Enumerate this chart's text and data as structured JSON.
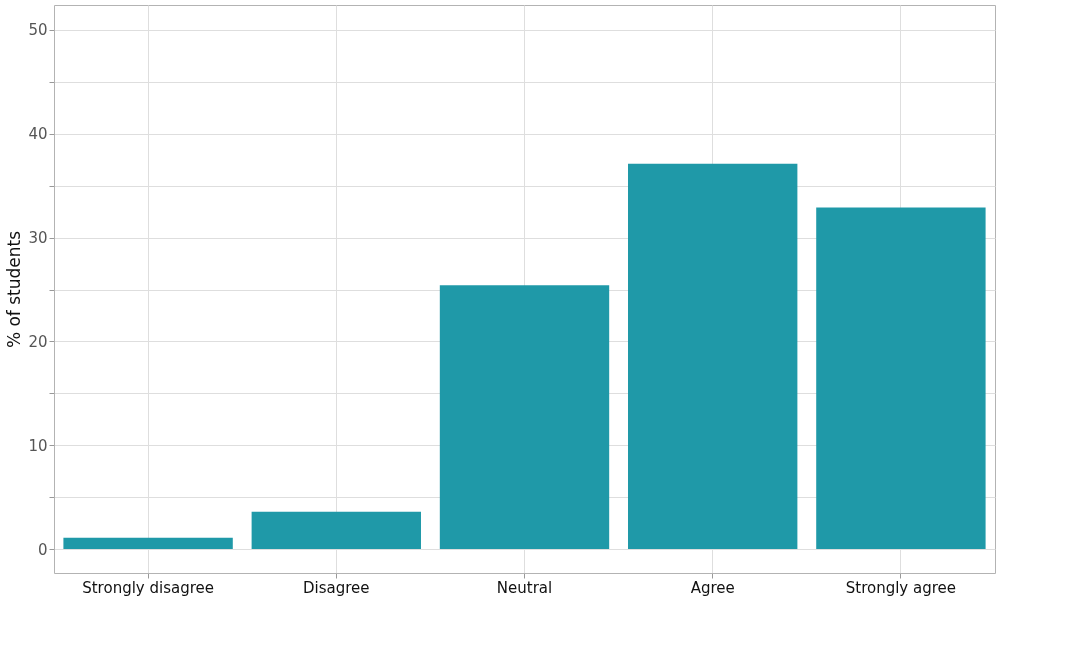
{
  "chart_data": {
    "type": "bar",
    "ylabel": "% of students",
    "categories": [
      "Strongly disagree",
      "Disagree",
      "Neutral",
      "Agree",
      "Strongly agree"
    ],
    "values": [
      1.1,
      3.6,
      25.4,
      37.1,
      32.9
    ],
    "color": "#1b97a6",
    "ylim": [
      -2.3,
      52.4
    ],
    "yticks": [
      0,
      {
        "value": 5,
        "label": null
      },
      10,
      {
        "value": 15,
        "label": null
      },
      20,
      {
        "value": 25,
        "label": null
      },
      30,
      {
        "value": 35,
        "label": null
      },
      40,
      {
        "value": 45,
        "label": null
      },
      50
    ],
    "grid": true
  }
}
